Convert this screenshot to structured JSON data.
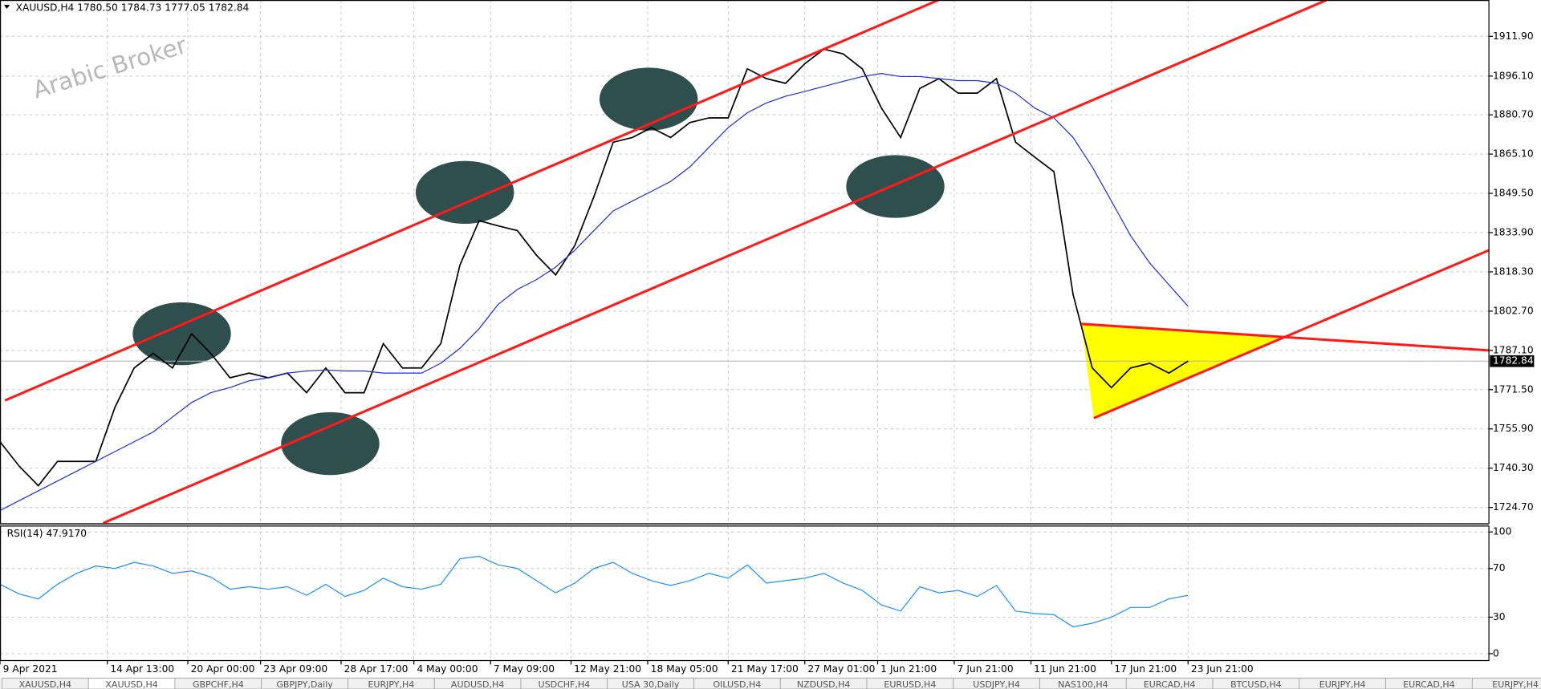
{
  "chart_data": [
    {
      "type": "line",
      "title": "XAUUSD,H4  1780.50 1784.73 1777.05 1782.84",
      "watermark": "Arabic Broker",
      "last_price": 1782.84,
      "x": [
        0,
        5,
        10,
        15,
        20,
        25,
        30,
        35,
        40,
        45,
        50,
        55,
        60,
        65,
        70,
        75,
        80,
        85,
        90,
        95,
        100,
        105,
        110,
        115,
        120,
        125,
        130,
        135,
        140,
        145,
        150,
        155,
        160,
        165,
        170,
        175,
        180,
        185,
        190,
        195,
        200,
        205,
        210,
        215,
        220,
        225,
        230,
        235,
        240,
        245,
        250,
        255,
        260,
        265,
        270,
        275,
        280,
        285,
        290,
        295,
        300,
        305,
        310
      ],
      "series": [
        {
          "name": "XAUUSD",
          "color": "#000000",
          "values": [
            1750.8,
            1741.1,
            1733.3,
            1743.0,
            1743.0,
            1743.0,
            1764.5,
            1780.1,
            1785.9,
            1780.1,
            1793.7,
            1785.9,
            1776.2,
            1778.1,
            1776.2,
            1778.1,
            1770.3,
            1780.1,
            1770.3,
            1770.3,
            1789.8,
            1780.1,
            1780.1,
            1789.8,
            1821.0,
            1838.6,
            1836.6,
            1834.7,
            1824.9,
            1817.1,
            1828.8,
            1848.3,
            1869.8,
            1871.7,
            1875.6,
            1871.7,
            1877.6,
            1879.5,
            1879.5,
            1899.0,
            1895.1,
            1893.2,
            1901.0,
            1906.8,
            1904.9,
            1899.0,
            1883.4,
            1871.7,
            1891.2,
            1895.1,
            1889.3,
            1889.3,
            1895.1,
            1869.8,
            1863.9,
            1858.1,
            1809.3,
            1780.1,
            1772.3,
            1780.1,
            1782.0,
            1778.1,
            1782.84
          ]
        },
        {
          "name": "MA",
          "color": "#1f2fd8",
          "values": [
            1723.5,
            1727.4,
            1731.3,
            1735.2,
            1739.1,
            1743.0,
            1746.9,
            1750.8,
            1754.7,
            1760.6,
            1766.4,
            1770.3,
            1772.3,
            1775.0,
            1776.2,
            1778.1,
            1778.9,
            1779.3,
            1778.9,
            1778.9,
            1778.1,
            1778.1,
            1778.1,
            1782.0,
            1787.9,
            1795.7,
            1805.4,
            1811.3,
            1815.2,
            1820.2,
            1826.9,
            1834.7,
            1842.5,
            1846.4,
            1850.3,
            1854.2,
            1860.0,
            1867.8,
            1875.6,
            1881.5,
            1885.4,
            1888.1,
            1890.0,
            1892.0,
            1894.0,
            1895.9,
            1897.1,
            1895.9,
            1895.9,
            1895.1,
            1894.3,
            1894.3,
            1893.2,
            1889.3,
            1883.4,
            1879.5,
            1871.7,
            1860.0,
            1846.4,
            1832.7,
            1821.8,
            1813.2,
            1804.6
          ]
        }
      ],
      "xlim": [
        0,
        388.5
      ],
      "xticks": [
        {
          "value": 0,
          "label": "9 Apr 2021"
        },
        {
          "value": 28,
          "label": "14 Apr 13:00"
        },
        {
          "value": 49,
          "label": "20 Apr 00:00"
        },
        {
          "value": 68,
          "label": "23 Apr 09:00"
        },
        {
          "value": 89,
          "label": "28 Apr 17:00"
        },
        {
          "value": 108,
          "label": "4 May 00:00"
        },
        {
          "value": 128,
          "label": "7 May 09:00"
        },
        {
          "value": 149,
          "label": "12 May 21:00"
        },
        {
          "value": 169,
          "label": "18 May 05:00"
        },
        {
          "value": 190,
          "label": "21 May 17:00"
        },
        {
          "value": 210,
          "label": "27 May 01:00"
        },
        {
          "value": 229,
          "label": "1 Jun 21:00"
        },
        {
          "value": 249,
          "label": "7 Jun 21:00"
        },
        {
          "value": 269,
          "label": "11 Jun 21:00"
        },
        {
          "value": 290,
          "label": "17 Jun 21:00"
        },
        {
          "value": 310,
          "label": "23 Jun 21:00"
        }
      ],
      "ylim": [
        1718.46,
        1926.33
      ],
      "yticks": [
        {
          "value": 1724.7,
          "label": "1724.70"
        },
        {
          "value": 1740.3,
          "label": "1740.30"
        },
        {
          "value": 1755.9,
          "label": "1755.90"
        },
        {
          "value": 1771.5,
          "label": "1771.50"
        },
        {
          "value": 1787.1,
          "label": "1787.10"
        },
        {
          "value": 1802.7,
          "label": "1802.70"
        },
        {
          "value": 1818.3,
          "label": "1818.30"
        },
        {
          "value": 1833.9,
          "label": "1833.90"
        },
        {
          "value": 1849.5,
          "label": "1849.50"
        },
        {
          "value": 1865.1,
          "label": "1865.10"
        },
        {
          "value": 1880.7,
          "label": "1880.70"
        },
        {
          "value": 1896.1,
          "label": "1896.10"
        },
        {
          "value": 1911.9,
          "label": "1911.90"
        }
      ],
      "grid": true
    },
    {
      "type": "line",
      "title": "RSI(14) 47.9170",
      "x": [
        0,
        5,
        10,
        15,
        20,
        25,
        30,
        35,
        40,
        45,
        50,
        55,
        60,
        65,
        70,
        75,
        80,
        85,
        90,
        95,
        100,
        105,
        110,
        115,
        120,
        125,
        130,
        135,
        140,
        145,
        150,
        155,
        160,
        165,
        170,
        175,
        180,
        185,
        190,
        195,
        200,
        205,
        210,
        215,
        220,
        225,
        230,
        235,
        240,
        245,
        250,
        255,
        260,
        265,
        270,
        275,
        280,
        285,
        290,
        295,
        300,
        305,
        310
      ],
      "series": [
        {
          "name": "RSI(14)",
          "color": "#1e90ff",
          "values": [
            57,
            49,
            45,
            57,
            66,
            72,
            70,
            75,
            72,
            66,
            68,
            63,
            53,
            55,
            53,
            55,
            48,
            57,
            47,
            52,
            62,
            55,
            53,
            57,
            78,
            80,
            73,
            70,
            60,
            50,
            58,
            70,
            75,
            66,
            60,
            56,
            60,
            66,
            62,
            73,
            58,
            60,
            62,
            66,
            58,
            52,
            40,
            35,
            55,
            50,
            52,
            47,
            56,
            35,
            33,
            32,
            22,
            25,
            30,
            38,
            38,
            45,
            47.917
          ]
        }
      ],
      "xlim": [
        0,
        388.5
      ],
      "ylim": [
        0,
        100
      ],
      "yticks": [
        0,
        30,
        70,
        100
      ],
      "grid": true
    }
  ],
  "tabs": [
    "XAUUSD,H4",
    "XAUUSD,H4",
    "GBPCHF,H4",
    "GBPJPY,Daily",
    "EURJPY,H4",
    "AUDUSD,H4",
    "USDCHF,H4",
    "USA 30,Daily",
    "OILUSD,H4",
    "NZDUSD,H4",
    "EURUSD,H4",
    "USDJPY,H4",
    "NAS100,H4",
    "EURCAD,H4",
    "BTCUSD,H4",
    "EURJPY,H4",
    "EURCAD,H4",
    "EURJPY,H4"
  ]
}
